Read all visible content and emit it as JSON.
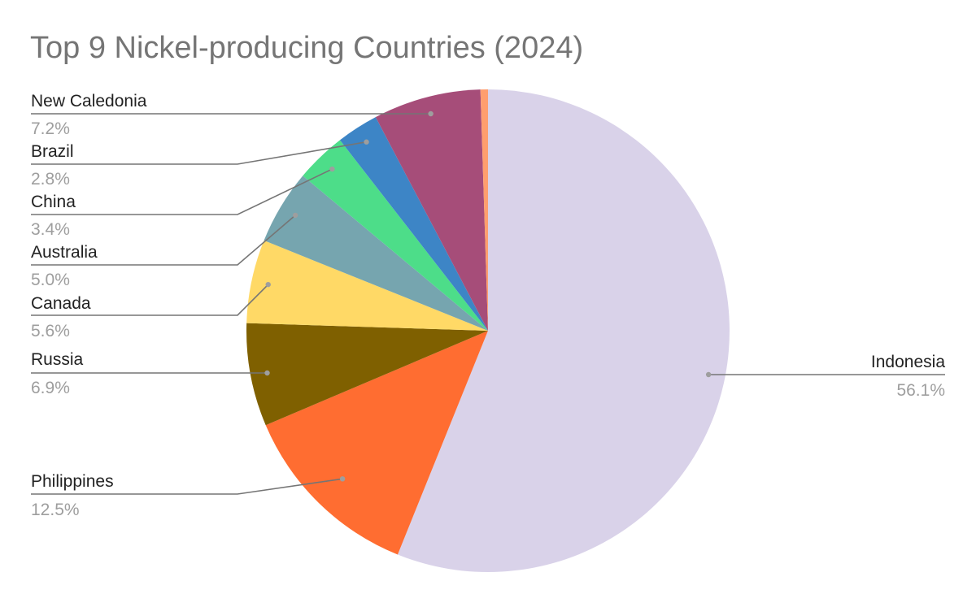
{
  "chart_data": {
    "type": "pie",
    "title": "Top 9 Nickel-producing Countries (2024)",
    "start_angle_deg": 0,
    "direction": "clockwise",
    "legend": "none",
    "slices": [
      {
        "label": "Indonesia",
        "value": 56.1,
        "pct_label": "56.1%",
        "color": "#d9d2e9"
      },
      {
        "label": "Philippines",
        "value": 12.5,
        "pct_label": "12.5%",
        "color": "#ff6d31"
      },
      {
        "label": "Russia",
        "value": 6.9,
        "pct_label": "6.9%",
        "color": "#7f6000"
      },
      {
        "label": "Canada",
        "value": 5.6,
        "pct_label": "5.6%",
        "color": "#ffd966"
      },
      {
        "label": "Australia",
        "value": 5.0,
        "pct_label": "5.0%",
        "color": "#76a5af"
      },
      {
        "label": "China",
        "value": 3.4,
        "pct_label": "3.4%",
        "color": "#4ddd89"
      },
      {
        "label": "Brazil",
        "value": 2.8,
        "pct_label": "2.8%",
        "color": "#3d85c6"
      },
      {
        "label": "New Caledonia",
        "value": 7.2,
        "pct_label": "7.2%",
        "color": "#a64d79"
      },
      {
        "label": "",
        "value": 0.5,
        "pct_label": "",
        "color": "#ff9e6e"
      }
    ]
  }
}
